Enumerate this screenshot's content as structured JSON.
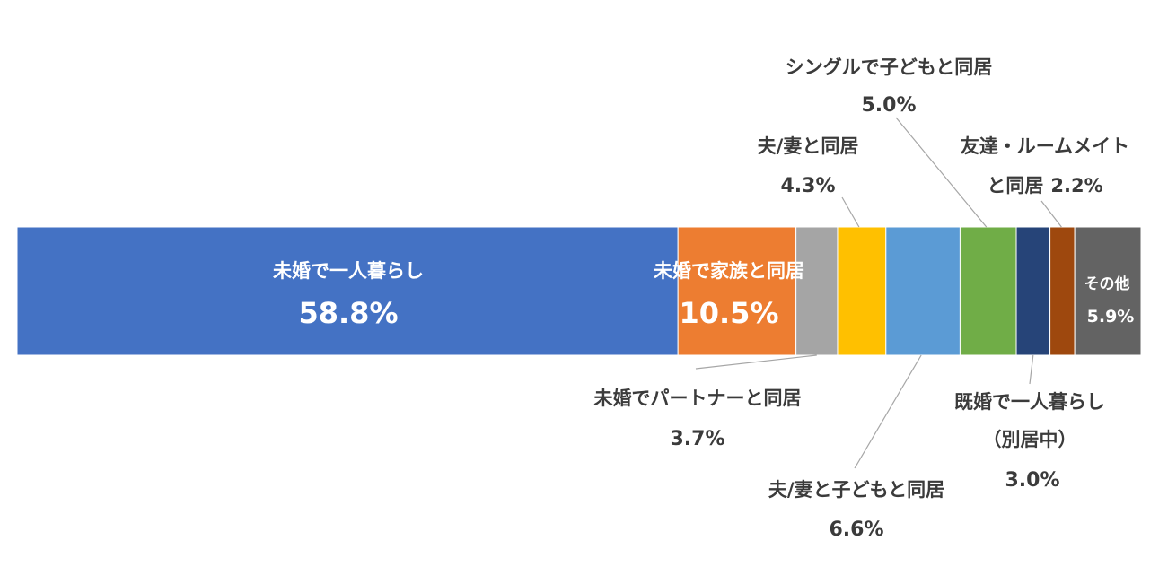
{
  "chart_data": {
    "type": "bar",
    "stacked": true,
    "orientation": "horizontal",
    "unit": "%",
    "segments": [
      {
        "name": "未婚で一人暮らし",
        "value": 58.8,
        "value_label": "58.8%",
        "color": "#4472C4"
      },
      {
        "name": "未婚で家族と同居",
        "value": 10.5,
        "value_label": "10.5%",
        "color": "#ED7D31"
      },
      {
        "name": "未婚でパートナーと同居",
        "value": 3.7,
        "value_label": "3.7%",
        "color": "#A5A5A5"
      },
      {
        "name": "夫/妻と同居",
        "value": 4.3,
        "value_label": "4.3%",
        "color": "#FFC000"
      },
      {
        "name": "夫/妻と子どもと同居",
        "value": 6.6,
        "value_label": "6.6%",
        "color": "#5B9BD5"
      },
      {
        "name": "シングルで子どもと同居",
        "value": 5.0,
        "value_label": "5.0%",
        "color": "#70AD47"
      },
      {
        "name": "既婚で一人暮らし",
        "name_line2": "（別居中）",
        "value": 3.0,
        "value_label": "3.0%",
        "color": "#264478"
      },
      {
        "name": "友達・ルームメイト",
        "name_line2": "と同居",
        "value": 2.2,
        "value_label": "2.2%",
        "color": "#9E480E"
      },
      {
        "name": "その他",
        "value": 5.9,
        "value_label": "5.9%",
        "color": "#636363"
      }
    ],
    "legend": "none",
    "grid": false
  }
}
